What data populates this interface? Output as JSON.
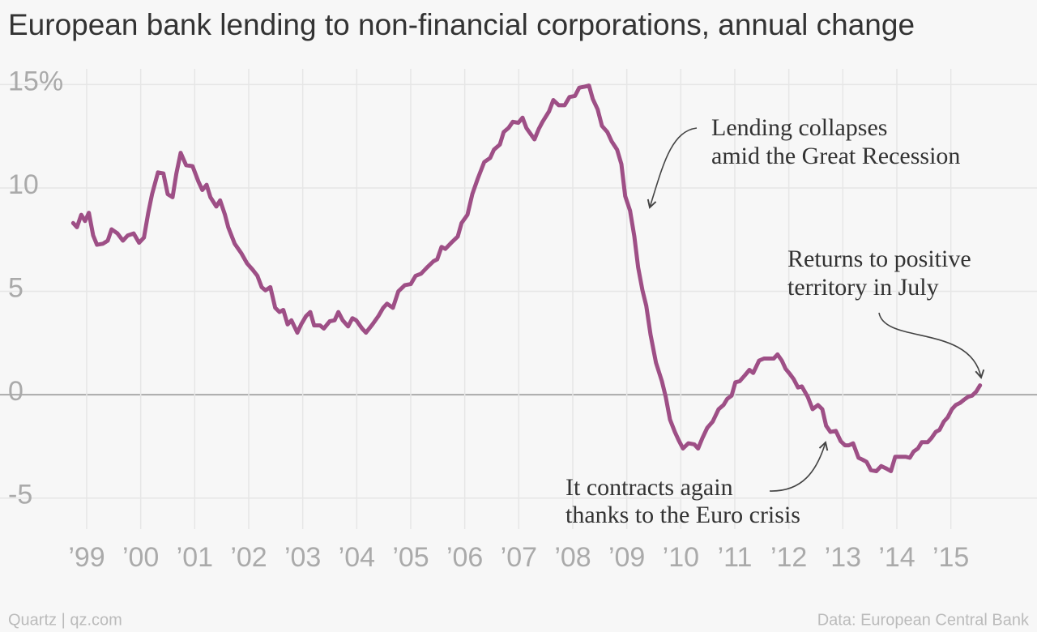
{
  "chart_data": {
    "type": "line",
    "title": "European bank lending to non-financial corporations, annual change",
    "color": "#9e4f86",
    "grid": true,
    "xlim": [
      1998.55,
      2015.62
    ],
    "ylim": [
      -6.5,
      16.15
    ],
    "yticks": [
      {
        "value": 15,
        "label": "15%"
      },
      10,
      5,
      0,
      -5
    ],
    "xticks": [
      {
        "value": 1999,
        "label": "’99"
      },
      {
        "value": 2000,
        "label": "’00"
      },
      {
        "value": 2001,
        "label": "’01"
      },
      {
        "value": 2002,
        "label": "’02"
      },
      {
        "value": 2003,
        "label": "’03"
      },
      {
        "value": 2004,
        "label": "’04"
      },
      {
        "value": 2005,
        "label": "’05"
      },
      {
        "value": 2006,
        "label": "’06"
      },
      {
        "value": 2007,
        "label": "’07"
      },
      {
        "value": 2008,
        "label": "’08"
      },
      {
        "value": 2009,
        "label": "’09"
      },
      {
        "value": 2010,
        "label": "’10"
      },
      {
        "value": 2011,
        "label": "’11"
      },
      {
        "value": 2012,
        "label": "’12"
      },
      {
        "value": 2013,
        "label": "’13"
      },
      {
        "value": 2014,
        "label": "’14"
      },
      {
        "value": 2015,
        "label": "’15"
      }
    ],
    "x": [
      1998.75,
      1998.82,
      1998.9,
      1998.97,
      1999.04,
      1999.12,
      1999.19,
      1999.3,
      1999.39,
      1999.46,
      1999.57,
      1999.67,
      1999.76,
      1999.87,
      1999.97,
      2000.06,
      2000.14,
      2000.21,
      2000.32,
      2000.42,
      2000.5,
      2000.59,
      2000.66,
      2000.74,
      2000.84,
      2000.96,
      2001.07,
      2001.14,
      2001.22,
      2001.29,
      2001.4,
      2001.47,
      2001.56,
      2001.62,
      2001.74,
      2001.86,
      2001.97,
      2002.07,
      2002.16,
      2002.24,
      2002.31,
      2002.4,
      2002.49,
      2002.57,
      2002.64,
      2002.72,
      2002.79,
      2002.9,
      2002.97,
      2003.06,
      2003.14,
      2003.21,
      2003.32,
      2003.39,
      2003.5,
      2003.59,
      2003.66,
      2003.74,
      2003.84,
      2003.92,
      2003.99,
      2004.1,
      2004.17,
      2004.29,
      2004.4,
      2004.49,
      2004.56,
      2004.67,
      2004.77,
      2004.89,
      2005.0,
      2005.09,
      2005.19,
      2005.3,
      2005.42,
      2005.49,
      2005.57,
      2005.64,
      2005.75,
      2005.87,
      2005.94,
      2006.05,
      2006.14,
      2006.24,
      2006.36,
      2006.47,
      2006.54,
      2006.65,
      2006.72,
      2006.81,
      2006.89,
      2006.99,
      2007.07,
      2007.14,
      2007.29,
      2007.37,
      2007.44,
      2007.56,
      2007.64,
      2007.74,
      2007.85,
      2007.94,
      2008.04,
      2008.12,
      2008.22,
      2008.3,
      2008.37,
      2008.46,
      2008.54,
      2008.64,
      2008.72,
      2008.82,
      2008.9,
      2008.97,
      2009.06,
      2009.14,
      2009.21,
      2009.29,
      2009.36,
      2009.44,
      2009.54,
      2009.65,
      2009.72,
      2009.8,
      2009.89,
      2009.96,
      2010.04,
      2010.14,
      2010.25,
      2010.32,
      2010.4,
      2010.49,
      2010.59,
      2010.7,
      2010.79,
      2010.86,
      2010.94,
      2011.01,
      2011.09,
      2011.19,
      2011.27,
      2011.34,
      2011.45,
      2011.54,
      2011.64,
      2011.72,
      2011.79,
      2011.87,
      2011.94,
      2012.02,
      2012.09,
      2012.17,
      2012.24,
      2012.35,
      2012.44,
      2012.54,
      2012.62,
      2012.69,
      2012.77,
      2012.87,
      2012.96,
      2013.04,
      2013.11,
      2013.19,
      2013.29,
      2013.37,
      2013.44,
      2013.52,
      2013.62,
      2013.71,
      2013.79,
      2013.89,
      2013.97,
      2014.09,
      2014.16,
      2014.24,
      2014.31,
      2014.39,
      2014.46,
      2014.57,
      2014.64,
      2014.72,
      2014.79,
      2014.87,
      2014.94,
      2015.02,
      2015.09,
      2015.17,
      2015.24,
      2015.32,
      2015.39,
      2015.47,
      2015.54
    ],
    "values": [
      8.3,
      8.1,
      8.7,
      8.4,
      8.8,
      7.7,
      7.25,
      7.3,
      7.45,
      8.0,
      7.8,
      7.45,
      7.7,
      7.8,
      7.35,
      7.6,
      8.8,
      9.7,
      10.75,
      10.7,
      9.7,
      9.55,
      10.7,
      11.7,
      11.1,
      11.05,
      10.3,
      9.9,
      10.15,
      9.55,
      9.1,
      9.4,
      8.7,
      8.1,
      7.3,
      6.85,
      6.35,
      6.05,
      5.75,
      5.2,
      5.05,
      5.2,
      4.2,
      4.0,
      4.1,
      3.4,
      3.6,
      3.0,
      3.4,
      3.8,
      4.0,
      3.35,
      3.35,
      3.2,
      3.55,
      3.6,
      4.0,
      3.6,
      3.3,
      3.7,
      3.6,
      3.2,
      3.0,
      3.4,
      3.8,
      4.2,
      4.4,
      4.2,
      5.0,
      5.3,
      5.35,
      5.75,
      5.85,
      6.15,
      6.45,
      6.55,
      7.15,
      7.05,
      7.35,
      7.65,
      8.3,
      8.7,
      9.7,
      10.45,
      11.25,
      11.45,
      11.85,
      12.1,
      12.7,
      12.9,
      13.2,
      13.15,
      13.4,
      12.9,
      12.35,
      12.85,
      13.2,
      13.7,
      14.25,
      14.0,
      14.0,
      14.4,
      14.45,
      14.85,
      14.9,
      14.95,
      14.3,
      13.8,
      13.0,
      12.7,
      12.25,
      11.85,
      11.15,
      9.6,
      8.9,
      7.65,
      6.15,
      5.05,
      4.3,
      2.9,
      1.55,
      0.65,
      -0.1,
      -1.2,
      -1.8,
      -2.2,
      -2.6,
      -2.35,
      -2.4,
      -2.6,
      -2.1,
      -1.6,
      -1.3,
      -0.7,
      -0.5,
      -0.2,
      -0.05,
      0.6,
      0.65,
      0.95,
      1.2,
      1.05,
      1.65,
      1.75,
      1.75,
      1.75,
      1.95,
      1.65,
      1.25,
      1.0,
      0.75,
      0.35,
      0.4,
      -0.1,
      -0.7,
      -0.5,
      -0.7,
      -1.5,
      -1.8,
      -1.75,
      -2.25,
      -2.45,
      -2.45,
      -2.35,
      -3.05,
      -3.15,
      -3.25,
      -3.65,
      -3.7,
      -3.45,
      -3.55,
      -3.7,
      -3.0,
      -3.0,
      -3.0,
      -3.05,
      -2.75,
      -2.6,
      -2.3,
      -2.3,
      -2.1,
      -1.8,
      -1.7,
      -1.3,
      -1.1,
      -0.7,
      -0.5,
      -0.4,
      -0.25,
      -0.1,
      -0.05,
      0.15,
      0.45
    ],
    "annotations": [
      {
        "lines": [
          "Lending collapses",
          "amid the Great Recession"
        ]
      },
      {
        "lines": [
          "Returns to positive",
          "territory in July"
        ]
      },
      {
        "lines": [
          "It contracts again",
          "thanks to the Euro crisis"
        ]
      }
    ],
    "source_left": "Quartz | qz.com",
    "source_right": "Data: European Central Bank"
  }
}
